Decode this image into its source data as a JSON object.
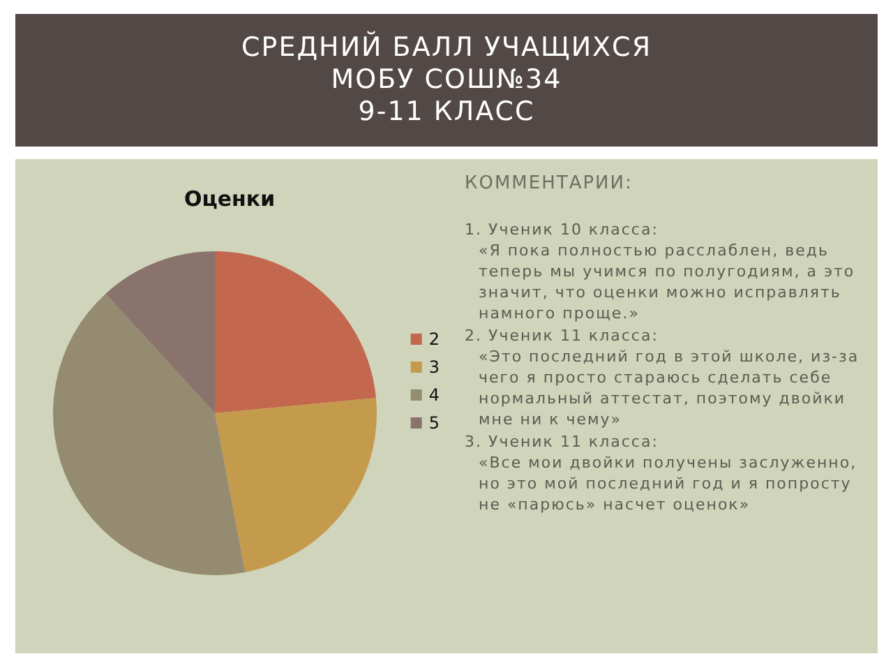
{
  "chart_data": {
    "type": "pie",
    "title": "СРЕДНИЙ БАЛЛ УЧАЩИХСЯ\nМОБУ СОШ№34\n9-11 КЛАСС",
    "subtitle": "Оценки",
    "categories": [
      "2",
      "3",
      "4",
      "5"
    ],
    "values": [
      23.5,
      23.5,
      41.2,
      11.8
    ],
    "colors": [
      "#c3674e",
      "#c49a4c",
      "#958b71",
      "#8a736c"
    ],
    "legend": "right",
    "annotations": [
      "КОММЕНТАРИИ:",
      "1. Ученик 10 класса:\n«Я пока полностью расслаблен, ведь теперь мы учимся по полугодиям, а это значит, что оценки можно исправлять намного проще.»",
      "2. Ученик 11 класса:\n«Это последний год в этой школе, из-за чего я просто стараюсь сделать себе нормальный аттестат, поэтому двойки мне ни к чему»",
      "3. Ученик 11 класса:\n«Все мои двойки получены заслуженно, но это мой последний год и я попросту не «парюсь» насчет оценок»"
    ]
  }
}
